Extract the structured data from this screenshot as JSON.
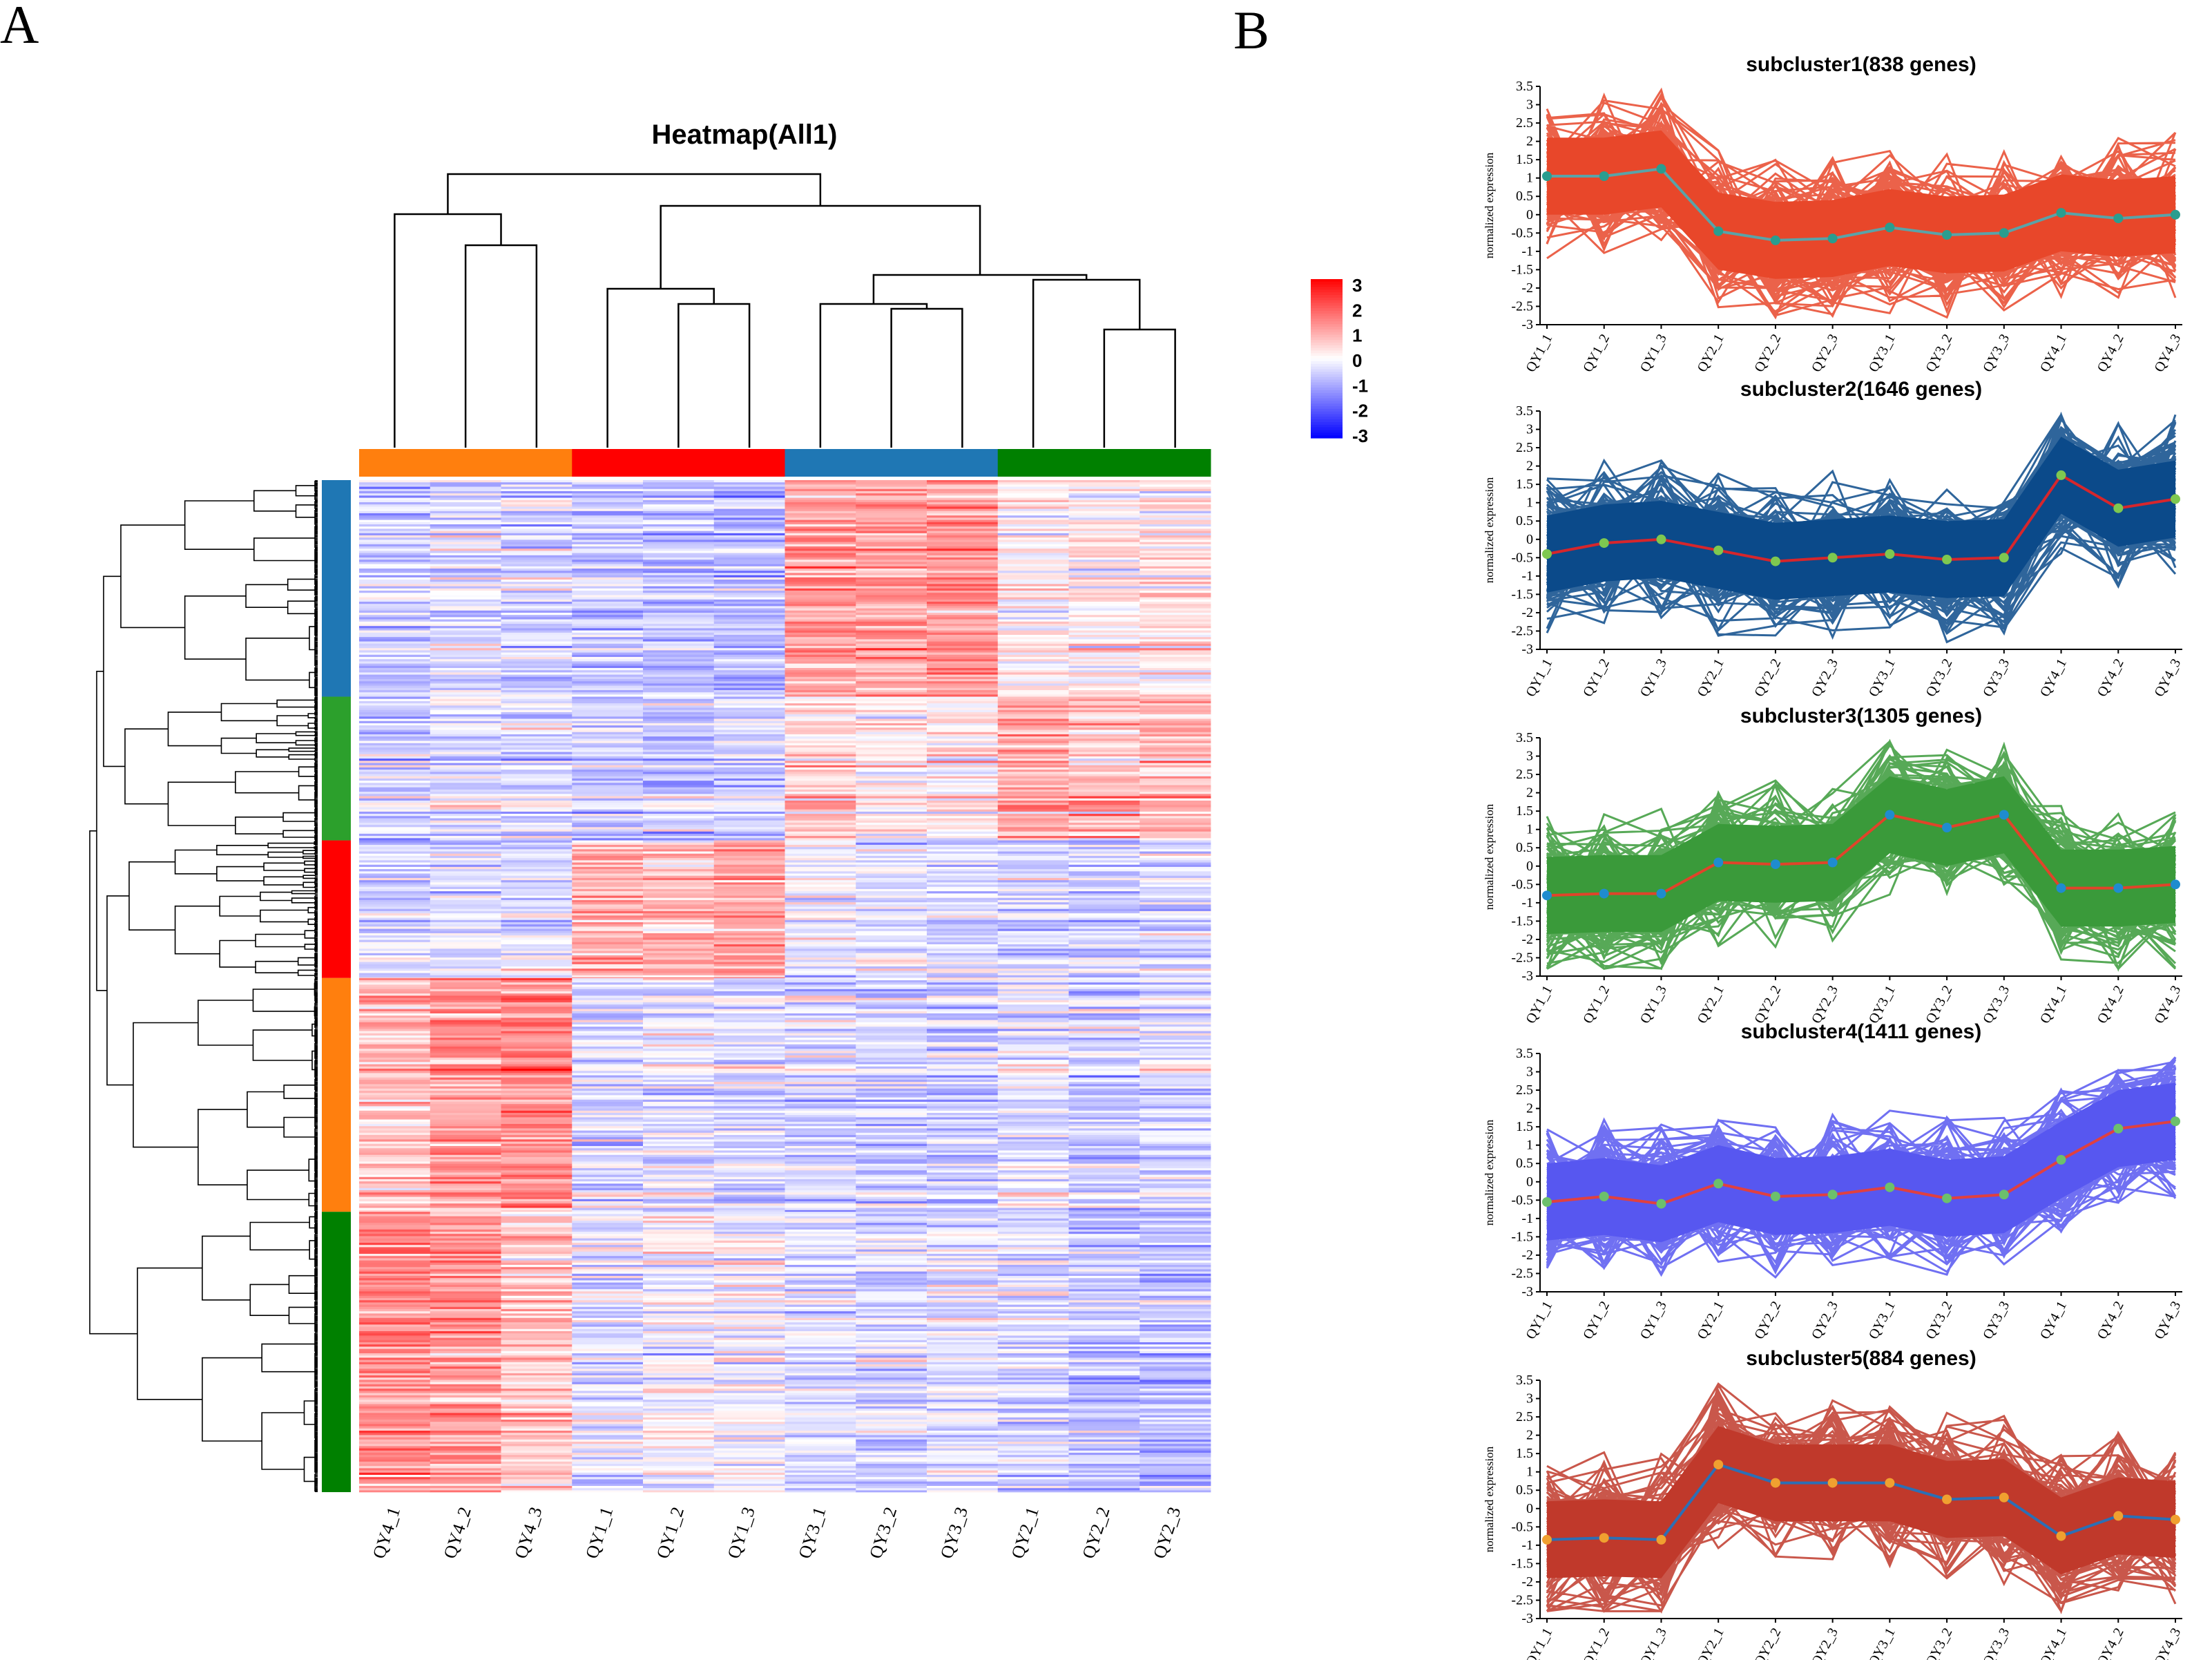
{
  "panel_a_label": "A",
  "panel_b_label": "B",
  "chart_data": [
    {
      "type": "heatmap",
      "title": "Heatmap(All1)",
      "columns": [
        "QY4_1",
        "QY4_2",
        "QY4_3",
        "QY1_1",
        "QY1_2",
        "QY1_3",
        "QY3_1",
        "QY3_2",
        "QY3_3",
        "QY2_1",
        "QY2_2",
        "QY2_3"
      ],
      "column_group_colors": [
        "#ff7f0e",
        "#ff7f0e",
        "#ff7f0e",
        "#ff0000",
        "#ff0000",
        "#ff0000",
        "#1f77b4",
        "#1f77b4",
        "#1f77b4",
        "#008000",
        "#008000",
        "#008000"
      ],
      "row_cluster_colors": [
        "#1f77b4",
        "#2ca02c",
        "#ff0000",
        "#ff7f0e",
        "#008000"
      ],
      "row_cluster_fractions": [
        0.214,
        0.142,
        0.136,
        0.231,
        0.277
      ],
      "cluster_profile": [
        [
          -0.5,
          -0.4,
          -0.5,
          -0.8,
          -0.8,
          -0.9,
          1.4,
          1.3,
          1.5,
          0.1,
          0.3,
          0.3
        ],
        [
          -0.6,
          -0.3,
          -0.4,
          -0.6,
          -0.7,
          -0.6,
          0.6,
          0.3,
          0.3,
          1.2,
          0.9,
          1.0
        ],
        [
          -0.4,
          -0.3,
          -0.3,
          1.2,
          1.0,
          1.3,
          -0.2,
          -0.3,
          -0.4,
          -0.5,
          -0.6,
          -0.5
        ],
        [
          0.9,
          1.4,
          1.6,
          -0.4,
          -0.3,
          -0.5,
          -0.5,
          -0.6,
          -0.6,
          -0.3,
          -0.6,
          -0.5
        ],
        [
          1.6,
          1.4,
          0.8,
          -0.3,
          0.0,
          0.0,
          -0.3,
          -0.4,
          -0.3,
          -0.5,
          -0.8,
          -0.8
        ]
      ],
      "legend_ticks": [
        "3",
        "2",
        "1",
        "0",
        "-1",
        "-2",
        "-3"
      ],
      "scale_range": [
        -3,
        3
      ],
      "scale_colors": {
        "low": "#0000ff",
        "mid": "#ffffff",
        "high": "#ff0000"
      }
    },
    {
      "type": "line",
      "ylabel": "normalized expression",
      "x": [
        "QY1_1",
        "QY1_2",
        "QY1_3",
        "QY2_1",
        "QY2_2",
        "QY2_3",
        "QY3_1",
        "QY3_2",
        "QY3_3",
        "QY4_1",
        "QY4_2",
        "QY4_3"
      ],
      "y_ticks": [
        "3.5",
        "3",
        "2.5",
        "2",
        "1.5",
        "1",
        "0.5",
        "0",
        "-0.5",
        "-1",
        "-1.5",
        "-2",
        "-2.5",
        "-3"
      ],
      "ylim": [
        -3,
        3.5
      ],
      "subclusters": [
        {
          "title": "subcluster1(838 genes)",
          "band_color": "#e8472a",
          "mean_line_color": "#5aa3a8",
          "marker_color": "#2a9d8f",
          "mean": [
            1.05,
            1.05,
            1.25,
            -0.45,
            -0.7,
            -0.65,
            -0.35,
            -0.55,
            -0.5,
            0.05,
            -0.1,
            0.0
          ]
        },
        {
          "title": "subcluster2(1646 genes)",
          "band_color": "#0b4a8a",
          "mean_line_color": "#d6262c",
          "marker_color": "#7ec850",
          "mean": [
            -0.4,
            -0.1,
            0.0,
            -0.3,
            -0.6,
            -0.5,
            -0.4,
            -0.55,
            -0.5,
            1.75,
            0.85,
            1.1
          ]
        },
        {
          "title": "subcluster3(1305 genes)",
          "band_color": "#3a9a3a",
          "mean_line_color": "#e0442a",
          "marker_color": "#1f8ccf",
          "mean": [
            -0.8,
            -0.75,
            -0.75,
            0.1,
            0.05,
            0.1,
            1.4,
            1.05,
            1.4,
            -0.6,
            -0.6,
            -0.5
          ]
        },
        {
          "title": "subcluster4(1411 genes)",
          "band_color": "#5757f0",
          "mean_line_color": "#e04040",
          "marker_color": "#6cc06c",
          "mean": [
            -0.55,
            -0.4,
            -0.6,
            -0.05,
            -0.4,
            -0.35,
            -0.15,
            -0.45,
            -0.35,
            0.6,
            1.45,
            1.65
          ]
        },
        {
          "title": "subcluster5(884 genes)",
          "band_color": "#c0392b",
          "mean_line_color": "#2c6fb5",
          "marker_color": "#f0a030",
          "mean": [
            -0.85,
            -0.8,
            -0.85,
            1.2,
            0.7,
            0.7,
            0.7,
            0.25,
            0.3,
            -0.75,
            -0.2,
            -0.3
          ]
        }
      ]
    }
  ]
}
